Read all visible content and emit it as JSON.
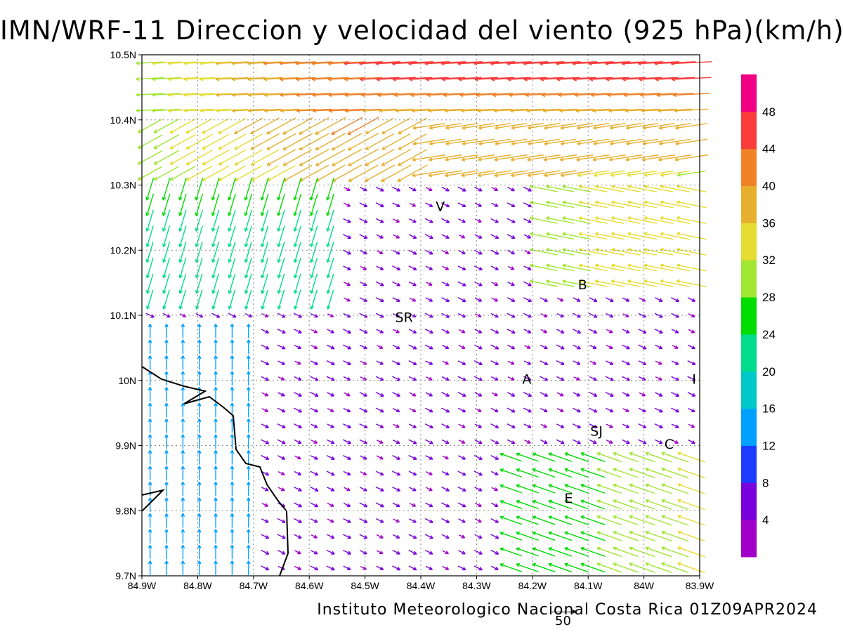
{
  "header": {
    "title": "IMN/WRF-11 Direccion y velocidad del viento (925 hPa)(km/h)"
  },
  "footer": {
    "credit": "Instituto Meteorologico Nacional Costa Rica 01Z09APR2024",
    "reference_vector_label": "50"
  },
  "chart_data": {
    "type": "vector-field",
    "xlabel": "",
    "ylabel": "",
    "lon_range": [
      -84.9,
      -83.9
    ],
    "lat_range": [
      9.7,
      10.5
    ],
    "lon_ticks": [
      "84.9W",
      "84.8W",
      "84.7W",
      "84.6W",
      "84.5W",
      "84.4W",
      "84.3W",
      "84.2W",
      "84.1W",
      "84W",
      "83.9W"
    ],
    "lat_ticks": [
      "9.7N",
      "9.8N",
      "9.9N",
      "10N",
      "10.1N",
      "10.2N",
      "10.3N",
      "10.4N",
      "10.5N"
    ],
    "grid": true,
    "colorbar": {
      "labels": [
        "4",
        "8",
        "12",
        "16",
        "20",
        "24",
        "28",
        "32",
        "36",
        "40",
        "44",
        "48"
      ],
      "colors": [
        "#a000c8",
        "#7800dc",
        "#1e3cff",
        "#00a0ff",
        "#00c8c8",
        "#00dc8c",
        "#00dc00",
        "#a0e632",
        "#e6dc32",
        "#e6af2d",
        "#f08228",
        "#fa3c3c",
        "#f00082"
      ]
    },
    "places": [
      {
        "label": "V",
        "lon": -84.365,
        "lat": 10.26
      },
      {
        "label": "B",
        "lon": -84.11,
        "lat": 10.14
      },
      {
        "label": "SR",
        "lon": -84.43,
        "lat": 10.09
      },
      {
        "label": "A",
        "lon": -84.21,
        "lat": 9.995
      },
      {
        "label": "I",
        "lon": -83.91,
        "lat": 9.995
      },
      {
        "label": "SJ",
        "lon": -84.085,
        "lat": 9.915
      },
      {
        "label": "C",
        "lon": -83.955,
        "lat": 9.895
      },
      {
        "label": "E",
        "lon": -84.135,
        "lat": 9.812
      }
    ]
  }
}
